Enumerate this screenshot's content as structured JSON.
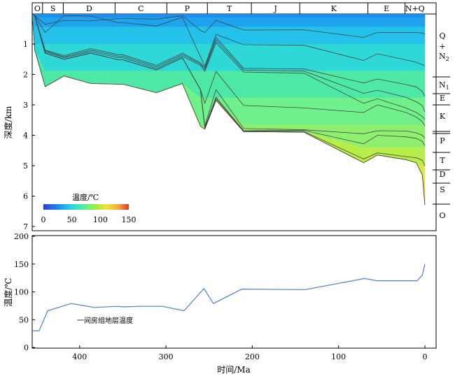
{
  "figure": {
    "top_chart": {
      "periods": [
        "O",
        "S",
        "D",
        "C",
        "P",
        "T",
        "J",
        "K",
        "E",
        "N+Q"
      ],
      "period_bounds_ma": [
        455,
        443,
        419,
        359,
        299,
        252,
        201,
        145,
        66,
        23,
        0
      ],
      "y_label": "深度/km",
      "y_ticks": [
        1,
        2,
        3,
        4,
        5,
        6,
        7
      ],
      "right_strata": [
        "Q\n+\nN2",
        "N1",
        "E",
        "K",
        "P",
        "T",
        "D",
        "S",
        "O"
      ],
      "colorbar": {
        "title": "温度/℃",
        "ticks": [
          0,
          50,
          100,
          150
        ]
      }
    },
    "bottom_chart": {
      "y_label": "温度/℃",
      "x_label": "时间/Ma",
      "x_ticks": [
        400,
        300,
        200,
        100,
        0
      ],
      "y_ticks": [
        0,
        50,
        100,
        150,
        200
      ],
      "legend_text": "一间房组地层温度"
    }
  },
  "chart_data": [
    {
      "type": "area",
      "title": "",
      "xlabel": "",
      "ylabel": "深度/km",
      "xlim": [
        455,
        -13
      ],
      "ylim": [
        7.1,
        -0.3
      ],
      "color_scale": "jet",
      "colorbar_title": "温度/℃",
      "colorbar_range": [
        0,
        150
      ],
      "x": [
        455,
        452,
        440,
        418,
        387,
        355,
        350,
        311,
        281,
        260,
        255,
        242,
        210,
        140,
        71,
        55,
        22,
        10,
        3,
        0
      ],
      "series": [
        {
          "name": "h1",
          "values": [
            0,
            0.07,
            0.35,
            0.22,
            0.24,
            0.16,
            0.16,
            0.18,
            0.07,
            0.55,
            0.62,
            0.22,
            0.54,
            0.53,
            0.78,
            0.62,
            0.62,
            0.62,
            0.64,
            0.67
          ]
        },
        {
          "name": "h2",
          "values": [
            0,
            0.07,
            0.62,
            0.06,
            0.08,
            0.3,
            0.3,
            0.41,
            0.12,
            1.42,
            1.73,
            0.68,
            1.02,
            1.04,
            1.54,
            1.32,
            1.52,
            1.6,
            1.68,
            1.72
          ]
        },
        {
          "name": "h3",
          "values": [
            0,
            0.07,
            1.2,
            1.38,
            1.15,
            1.35,
            1.35,
            1.7,
            1.3,
            1.62,
            1.78,
            0.78,
            1.8,
            1.82,
            2.28,
            2.15,
            2.33,
            2.41,
            2.56,
            2.72
          ]
        },
        {
          "name": "h4",
          "values": [
            0,
            0.07,
            1.22,
            1.42,
            1.2,
            1.4,
            1.4,
            1.75,
            1.35,
            1.66,
            1.84,
            0.86,
            1.86,
            1.89,
            2.62,
            2.52,
            2.75,
            2.9,
            3.02,
            3.22
          ]
        },
        {
          "name": "h5",
          "values": [
            0,
            0.07,
            1.25,
            1.45,
            1.25,
            1.45,
            1.45,
            1.8,
            1.4,
            1.7,
            1.9,
            0.95,
            1.92,
            1.96,
            2.95,
            2.8,
            3.1,
            3.25,
            3.38,
            3.48
          ]
        },
        {
          "name": "h6",
          "values": [
            0,
            0.07,
            1.3,
            1.5,
            1.3,
            1.52,
            1.52,
            1.85,
            1.45,
            2.5,
            2.95,
            1.9,
            3.02,
            3.1,
            3.25,
            3.0,
            3.25,
            3.4,
            3.55,
            3.7
          ]
        },
        {
          "name": "h7",
          "values": [
            0,
            0.07,
            1.3,
            1.5,
            1.3,
            1.52,
            1.52,
            1.85,
            1.45,
            2.5,
            3.7,
            2.5,
            3.78,
            3.82,
            3.95,
            3.85,
            3.86,
            3.92,
            4.0,
            4.1
          ]
        },
        {
          "name": "h8",
          "values": [
            0,
            0.07,
            1.3,
            1.5,
            1.3,
            1.52,
            1.52,
            1.85,
            1.45,
            2.5,
            3.74,
            2.75,
            3.85,
            3.84,
            4.28,
            4.0,
            4.05,
            4.1,
            4.2,
            4.35
          ]
        },
        {
          "name": "h9",
          "values": [
            0,
            0.07,
            1.3,
            1.5,
            1.3,
            1.52,
            1.52,
            1.85,
            1.45,
            2.5,
            3.76,
            2.8,
            3.86,
            3.88,
            4.78,
            4.58,
            4.7,
            4.74,
            4.82,
            5.0
          ]
        },
        {
          "name": "h10",
          "values": [
            0,
            1.2,
            2.4,
            2.05,
            2.3,
            2.32,
            2.32,
            2.6,
            2.3,
            3.7,
            3.8,
            2.85,
            3.88,
            3.9,
            4.9,
            4.65,
            4.8,
            4.9,
            5.3,
            6.3
          ]
        }
      ]
    },
    {
      "type": "line",
      "title": "",
      "xlabel": "时间/Ma",
      "ylabel": "温度/℃",
      "xlim": [
        455,
        -13
      ],
      "ylim": [
        0,
        205
      ],
      "x": [
        455,
        447,
        437,
        410,
        383,
        357,
        348,
        332,
        304,
        279,
        256,
        245,
        212,
        139,
        70,
        55,
        9,
        3,
        0
      ],
      "series": [
        {
          "name": "一间房组地层温度",
          "values": [
            30,
            30,
            66,
            79,
            72,
            74,
            73,
            74,
            74,
            66,
            106,
            79,
            105,
            104,
            124,
            120,
            120,
            130,
            150
          ]
        }
      ]
    }
  ]
}
